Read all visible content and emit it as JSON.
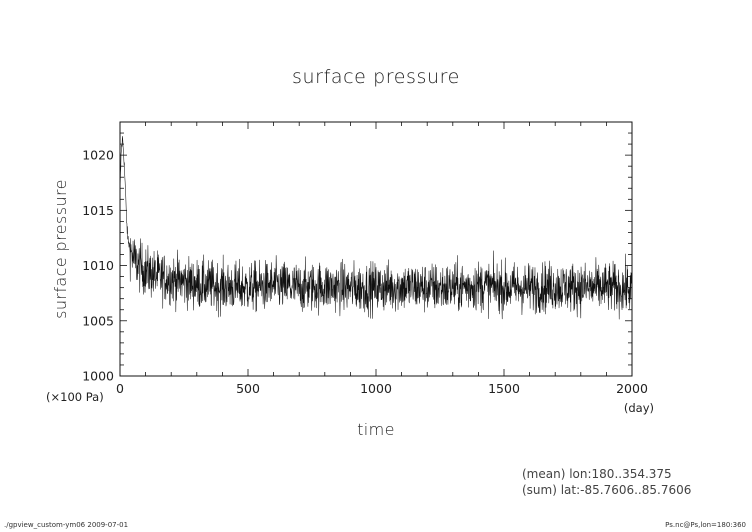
{
  "chart_data": {
    "type": "line",
    "title": "surface pressure",
    "xlabel": "time",
    "ylabel": "surface pressure",
    "x_unit": "(day)",
    "y_unit": "(×100 Pa)",
    "xlim": [
      0,
      2000
    ],
    "ylim": [
      1000,
      1023
    ],
    "x_ticks": [
      0,
      500,
      1000,
      1500,
      2000
    ],
    "y_ticks": [
      1000,
      1005,
      1010,
      1015,
      1020
    ],
    "grid": false,
    "legend": "none",
    "line_color": "#111111",
    "series": [
      {
        "x": [
          0,
          5,
          10,
          15,
          20,
          25,
          30,
          40,
          50,
          60,
          75,
          100,
          150,
          200,
          300,
          400,
          500,
          600,
          700,
          800,
          900,
          1000,
          1100,
          1200,
          1300,
          1400,
          1500,
          1600,
          1700,
          1800,
          1900,
          2000
        ],
        "values": [
          1016.5,
          1020.5,
          1021.5,
          1020.0,
          1017.5,
          1014.5,
          1012.5,
          1011.5,
          1010.8,
          1010.3,
          1010.0,
          1009.5,
          1009.0,
          1008.8,
          1008.3,
          1008.1,
          1008.0,
          1008.2,
          1008.0,
          1008.1,
          1008.0,
          1008.0,
          1008.1,
          1008.0,
          1008.0,
          1008.2,
          1008.0,
          1008.0,
          1008.1,
          1008.0,
          1008.0,
          1007.9
        ],
        "noise_amplitude": 1.6
      }
    ]
  },
  "annotations": {
    "note_line1": "(mean) lon:180..354.375",
    "note_line2": "(sum) lat:-85.7606..85.7606"
  },
  "footer": {
    "left": "./gpview_custom-ym06  2009-07-01",
    "right": "Ps.nc@Ps,lon=180:360"
  }
}
